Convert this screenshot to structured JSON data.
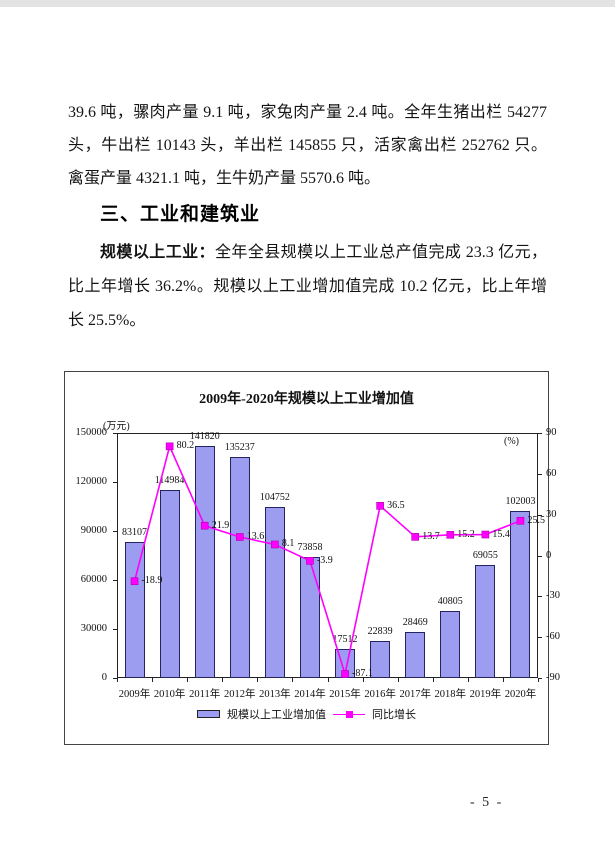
{
  "document": {
    "para1_lines": [
      "39.6 吨，骡肉产量 9.1 吨，家兔肉产量 2.4 吨。全年生猪出栏 54277",
      "头，牛出栏 10143 头，羊出栏 145855 只，活家禽出栏 252762 只。",
      "禽蛋产量 4321.1 吨，生牛奶产量 5570.6 吨。"
    ],
    "section_heading": "三、工业和建筑业",
    "para2_lead": "规模以上工业：",
    "para2_lines": [
      "全年全县规模以上工业总产值完成 23.3 亿元，",
      "比上年增长 36.2%。规模以上工业增加值完成 10.2 亿元，比上年增",
      "长 25.5%。"
    ],
    "page_number": "- 5 -"
  },
  "chart_data": {
    "type": "bar",
    "subtype": "bar+line dual-axis",
    "title": "2009年-2020年规模以上工业增加值",
    "categories": [
      "2009年",
      "2010年",
      "2011年",
      "2012年",
      "2013年",
      "2014年",
      "2015年",
      "2016年",
      "2017年",
      "2018年",
      "2019年",
      "2020年"
    ],
    "series": [
      {
        "name": "规模以上工业增加值",
        "type": "bar",
        "axis": "left",
        "values": [
          83107,
          114984,
          141820,
          135237,
          104752,
          73858,
          17512,
          22839,
          28469,
          40805,
          69055,
          102003
        ],
        "fill": "#9c9cf0",
        "border": "#24245e"
      },
      {
        "name": "同比增长",
        "type": "line",
        "axis": "right",
        "values": [
          -18.9,
          80.2,
          21.9,
          13.6,
          8.1,
          -3.9,
          -87.1,
          36.5,
          13.7,
          15.2,
          15.4,
          25.5
        ],
        "color": "#ff00ff"
      }
    ],
    "left_axis": {
      "label": "(万元)",
      "min": 0,
      "max": 150000,
      "ticks": [
        0,
        30000,
        60000,
        90000,
        120000,
        150000
      ]
    },
    "right_axis": {
      "label": "(%)",
      "min": -90,
      "max": 90,
      "ticks": [
        -90,
        -60,
        -30,
        0,
        30,
        60,
        90
      ]
    },
    "legend_position": "bottom",
    "grid": false
  }
}
